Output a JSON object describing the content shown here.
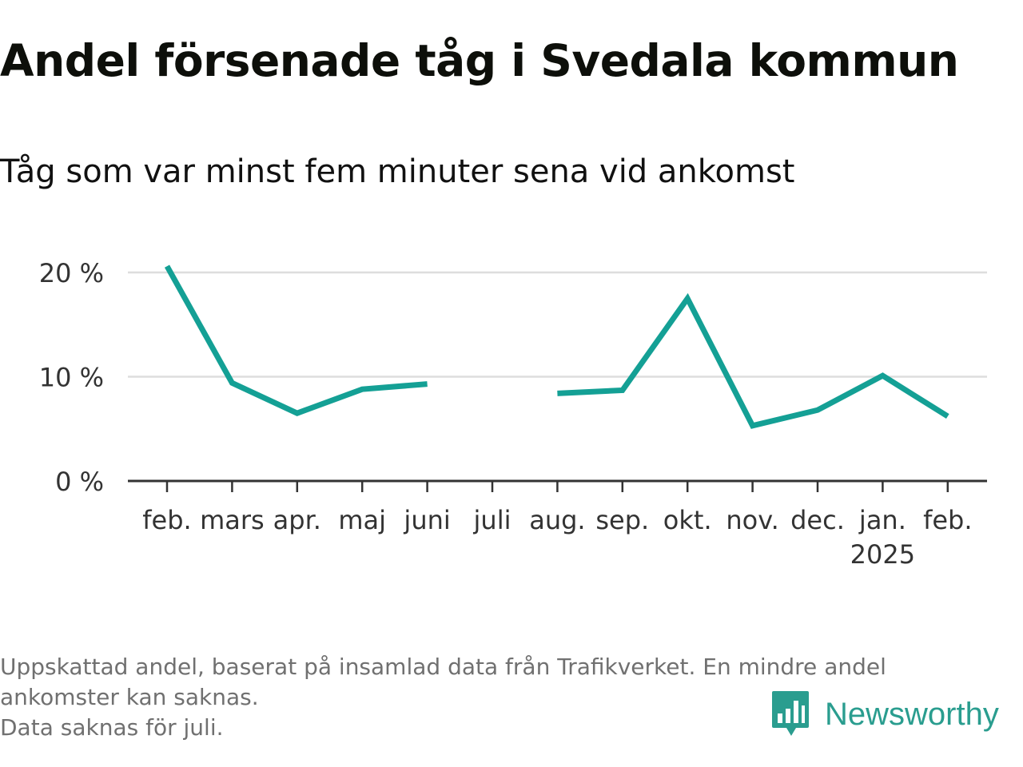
{
  "title": "Andel försenade tåg i Svedala kommun",
  "subtitle": "Tåg som var minst fem minuter sena vid ankomst",
  "footnote": {
    "line1": "Uppskattad andel, baserat på insamlad data från Trafikverket. En mindre andel",
    "line2": "ankomster kan saknas.",
    "line3": "Data saknas för juli."
  },
  "logo": {
    "text": "Newsworthy",
    "icon": "newsworthy-bar-chart-icon",
    "color": "#2a9d8f"
  },
  "chart_data": {
    "type": "line",
    "title": "Andel försenade tåg i Svedala kommun",
    "subtitle": "Tåg som var minst fem minuter sena vid ankomst",
    "categories": [
      "feb.",
      "mars",
      "apr.",
      "maj",
      "juni",
      "juli",
      "aug.",
      "sep.",
      "okt.",
      "nov.",
      "dec.",
      "jan.",
      "feb."
    ],
    "year_label": "2025",
    "series": [
      {
        "values": [
          20.6,
          9.4,
          6.5,
          8.8,
          9.3,
          null,
          8.4,
          8.7,
          17.5,
          5.3,
          6.8,
          10.1,
          6.2
        ],
        "color": "#14a095"
      }
    ],
    "yticks": [
      "0 %",
      "10 %",
      "20 %"
    ],
    "ytick_values": [
      0,
      10,
      20
    ],
    "ylim": [
      0,
      20
    ],
    "grid": true,
    "legend": "none"
  }
}
